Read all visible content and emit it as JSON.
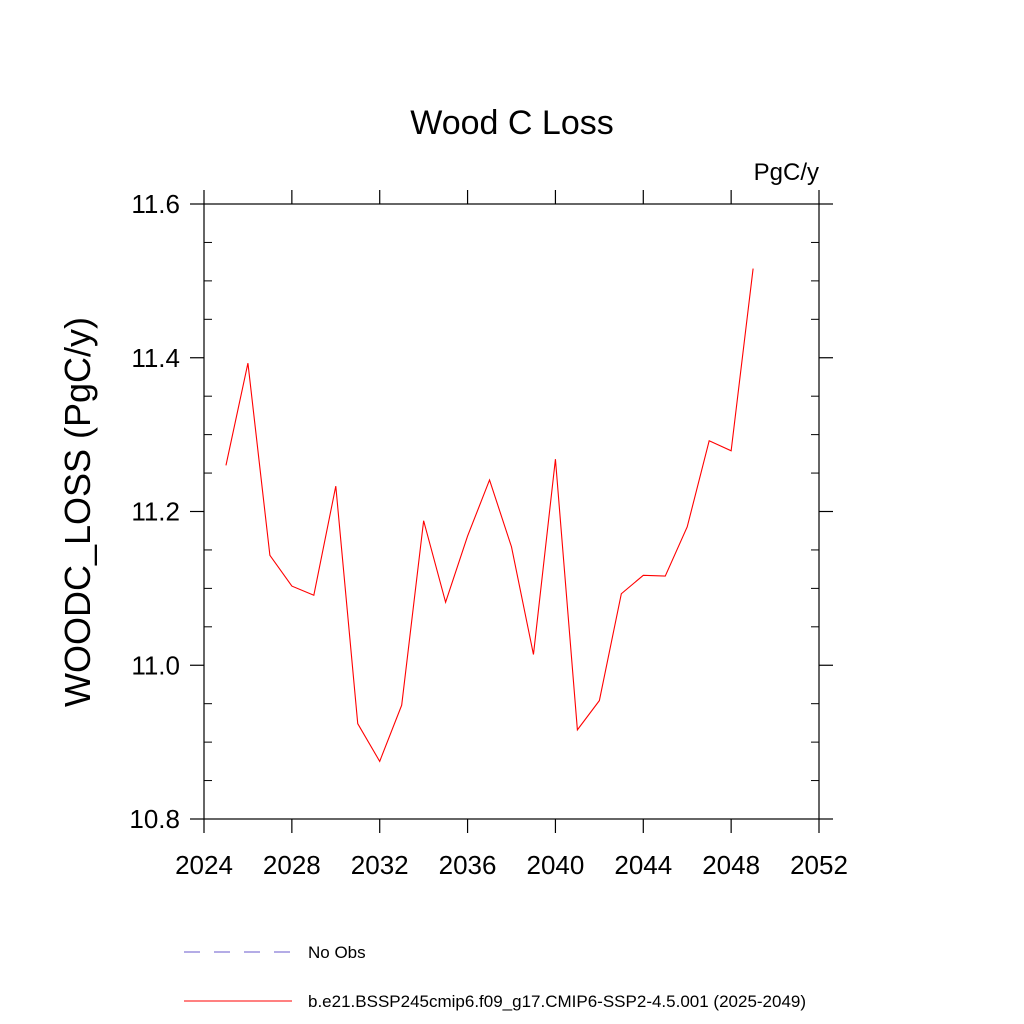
{
  "chart_data": {
    "type": "line",
    "title": "Wood C Loss",
    "units_label": "PgC/y",
    "ylabel": "WOODC_LOSS  (PgC/y)",
    "xlabel": "",
    "xlim": [
      2024,
      2052
    ],
    "ylim": [
      10.8,
      11.6
    ],
    "xticks": [
      2024,
      2028,
      2032,
      2036,
      2040,
      2044,
      2048,
      2052
    ],
    "yticks": [
      10.8,
      11.0,
      11.2,
      11.4,
      11.6
    ],
    "yticks_labels": [
      "10.8",
      "11.0",
      "11.2",
      "11.4",
      "11.6"
    ],
    "grid": false,
    "legend_position": "bottom",
    "series": [
      {
        "name": "b.e21.BSSP245cmip6.f09_g17.CMIP6-SSP2-4.5.001 (2025-2049)",
        "color": "#ff0000",
        "style": "solid",
        "x": [
          2025,
          2026,
          2027,
          2028,
          2029,
          2030,
          2031,
          2032,
          2033,
          2034,
          2035,
          2036,
          2037,
          2038,
          2039,
          2040,
          2041,
          2042,
          2043,
          2044,
          2045,
          2046,
          2047,
          2048,
          2049
        ],
        "y": [
          11.26,
          11.393,
          11.143,
          11.103,
          11.091,
          11.233,
          10.924,
          10.875,
          10.948,
          11.188,
          11.082,
          11.168,
          11.241,
          11.154,
          11.014,
          11.268,
          10.916,
          10.954,
          11.093,
          11.117,
          11.116,
          11.18,
          11.292,
          11.279,
          11.516
        ]
      }
    ],
    "legend": [
      {
        "label": "No Obs",
        "color": "#6a5acd",
        "style": "dashed"
      },
      {
        "label": "b.e21.BSSP245cmip6.f09_g17.CMIP6-SSP2-4.5.001 (2025-2049)",
        "color": "#ff0000",
        "style": "solid"
      }
    ]
  }
}
